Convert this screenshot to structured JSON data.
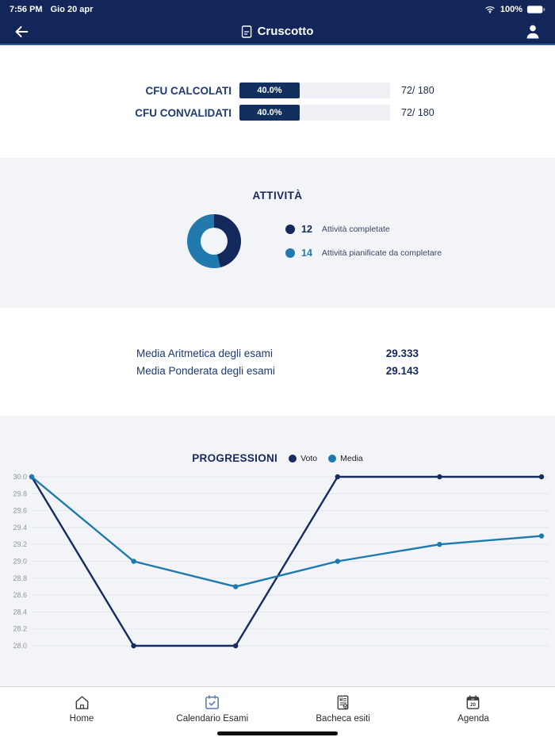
{
  "theme": {
    "header_bg": "#12265a",
    "accent_navy": "#13295c",
    "accent_blue": "#2279ad",
    "section_bg": "#f2f4f8",
    "bar_fill": "#12305f"
  },
  "status_bar": {
    "time": "7:56 PM",
    "date": "Gio 20 apr",
    "battery": "100%"
  },
  "nav_bar": {
    "title": "Cruscotto"
  },
  "cfu": {
    "rows": [
      {
        "label": "CFU CALCOLATI",
        "percent": "40.0%",
        "percent_value": 40,
        "fraction": "72/ 180"
      },
      {
        "label": "CFU CONVALIDATI",
        "percent": "40.0%",
        "percent_value": 40,
        "fraction": "72/ 180"
      }
    ]
  },
  "attivita": {
    "title": "ATTIVITÀ"
  },
  "medie": {
    "rows": [
      {
        "label": "Media Aritmetica degli esami",
        "value": "29.333"
      },
      {
        "label": "Media Ponderata degli esami",
        "value": "29.143"
      }
    ]
  },
  "progressioni": {
    "title": "PROGRESSIONI"
  },
  "chart_data": [
    {
      "type": "pie",
      "subtype": "donut",
      "title": "ATTIVITÀ",
      "slices": [
        {
          "label": "Attività completate",
          "value": 12,
          "color": "#13295c"
        },
        {
          "label": "Attività pianificate da completare",
          "value": 14,
          "color": "#2279ad"
        }
      ]
    },
    {
      "type": "line",
      "title": "PROGRESSIONI",
      "x": [
        1,
        2,
        3,
        4,
        5,
        6
      ],
      "series": [
        {
          "name": "Voto",
          "color": "#152c60",
          "values": [
            30,
            28,
            28,
            30,
            30,
            30
          ]
        },
        {
          "name": "Media",
          "color": "#1e79ae",
          "values": [
            30,
            29,
            28.7,
            29,
            29.2,
            29.3
          ]
        }
      ],
      "ylim": [
        28,
        30
      ],
      "ytick_step": 0.2,
      "grid": true,
      "legend_position": "top",
      "xlabel": "",
      "ylabel": ""
    }
  ],
  "tab_bar": {
    "items": [
      {
        "label": "Home"
      },
      {
        "label": "Calendario Esami"
      },
      {
        "label": "Bacheca esiti"
      },
      {
        "label": "Agenda",
        "icon_month": "apr",
        "icon_day": "20"
      }
    ]
  }
}
